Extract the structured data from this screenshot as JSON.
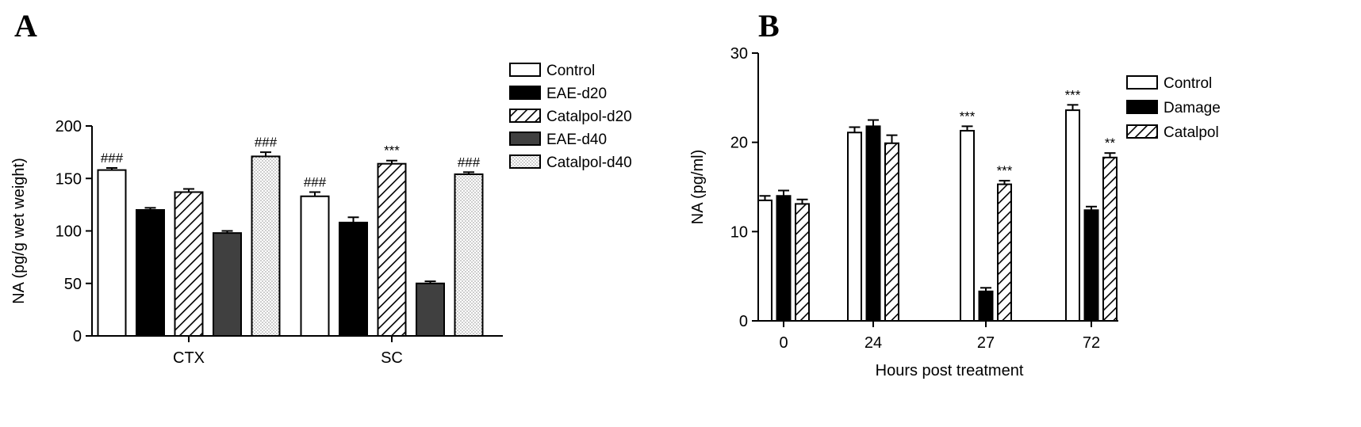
{
  "panels": {
    "a": {
      "letter": "A"
    },
    "b": {
      "letter": "B"
    }
  },
  "chart_data": [
    {
      "type": "bar",
      "panel": "A",
      "title": "",
      "xlabel": "",
      "ylabel": "NA (pg/g wet weight)",
      "ylim": [
        0,
        200
      ],
      "yticks": [
        0,
        50,
        100,
        150,
        200
      ],
      "categories": [
        "CTX",
        "SC"
      ],
      "legend_position": "top-right",
      "series": [
        {
          "name": "Control",
          "values": [
            158,
            133
          ],
          "errors": [
            2,
            4
          ],
          "annotations": [
            "###",
            "###"
          ],
          "fill": "white"
        },
        {
          "name": "EAE-d20",
          "values": [
            120,
            108
          ],
          "errors": [
            2,
            5
          ],
          "annotations": [
            "",
            ""
          ],
          "fill": "black"
        },
        {
          "name": "Catalpol-d20",
          "values": [
            137,
            164
          ],
          "errors": [
            3,
            3
          ],
          "annotations": [
            "",
            "***"
          ],
          "fill": "hatch"
        },
        {
          "name": "EAE-d40",
          "values": [
            98,
            50
          ],
          "errors": [
            2,
            2
          ],
          "annotations": [
            "",
            ""
          ],
          "fill": "#404040"
        },
        {
          "name": "Catalpol-d40",
          "values": [
            171,
            154
          ],
          "errors": [
            4,
            2
          ],
          "annotations": [
            "###",
            "###"
          ],
          "fill": "dots"
        }
      ]
    },
    {
      "type": "bar",
      "panel": "B",
      "title": "",
      "xlabel": "Hours post treatment",
      "ylabel": "NA (pg/ml)",
      "ylim": [
        0,
        30
      ],
      "yticks": [
        0,
        10,
        20,
        30
      ],
      "categories": [
        "0",
        "24",
        "27",
        "72"
      ],
      "legend_position": "top-right",
      "series": [
        {
          "name": "Control",
          "values": [
            13.5,
            21.1,
            21.3,
            23.6
          ],
          "errors": [
            0.5,
            0.6,
            0.5,
            0.6
          ],
          "annotations": [
            "",
            "",
            "***",
            "***"
          ],
          "fill": "white"
        },
        {
          "name": "Damage",
          "values": [
            14.0,
            21.8,
            3.3,
            12.4
          ],
          "errors": [
            0.6,
            0.7,
            0.4,
            0.4
          ],
          "annotations": [
            "",
            "",
            "",
            ""
          ],
          "fill": "black"
        },
        {
          "name": "Catalpol",
          "values": [
            13.1,
            19.9,
            15.3,
            18.3
          ],
          "errors": [
            0.5,
            0.9,
            0.4,
            0.5
          ],
          "annotations": [
            "",
            "",
            "***",
            "**"
          ],
          "fill": "hatch"
        }
      ]
    }
  ]
}
